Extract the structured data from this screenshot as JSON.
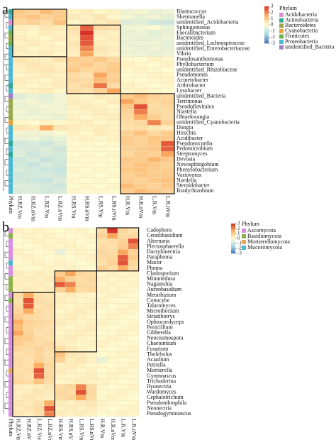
{
  "chart_data": [
    {
      "type": "heatmap",
      "label": "a",
      "strip_label": "Phylum",
      "legend_title": "Phylum",
      "x": [
        "H.RZ.Vm",
        "H.RZ.nVm",
        "L.RZ.Vm",
        "L.RZ.nVm",
        "H.RS.Vm",
        "H.RS.nVm",
        "L.RS.Vm",
        "L.RS.nVm",
        "H.R.Vm",
        "H.R.nVm",
        "L.R.Vm",
        "L.R.nVm"
      ],
      "y": [
        "Blastococcus",
        "Skermanella",
        "unidentified_Acidobacteria",
        "Sphingomonas",
        "Faecalibacterium",
        "Bacteroides",
        "unidentified_Lachnospiraceae",
        "unidentified_Enterobacteriaceae",
        "Vibrio",
        "Pseudoxanthomonas",
        "Phyllobacterium",
        "unidentified_Rhizobiaceae",
        "Pseudomonas",
        "Acinetobacter",
        "Arthrobacter",
        "Lysobacter",
        "unidentified_Bacteria",
        "Terrimonas",
        "Pseudoflavitalea",
        "Niastella",
        "Ohtaekwangia",
        "unidentified_Cyanobacteria",
        "Dongia",
        "Hirschia",
        "Acidibacter",
        "Pseudonocardia",
        "Pedomicrobium",
        "Streptomyces",
        "Devosia",
        "Novosphingobium",
        "Phenylobacterium",
        "Variovorax",
        "Nordella",
        "Steroidobacter",
        "Bradyrhizobium"
      ],
      "values": [
        [
          1.0,
          0.8,
          1.2,
          0.9,
          0.2,
          0.3,
          0.1,
          0.2,
          -0.3,
          -0.2,
          -0.4,
          -0.3
        ],
        [
          0.9,
          1.1,
          0.8,
          1.0,
          0.3,
          0.2,
          0.4,
          0.1,
          -0.2,
          -0.4,
          -0.3,
          -0.5
        ],
        [
          0.7,
          0.8,
          0.6,
          1.1,
          0.1,
          0.2,
          0.3,
          0.4,
          -0.6,
          -0.5,
          -0.8,
          -0.9
        ],
        [
          0.3,
          0.2,
          0.4,
          0.3,
          0.5,
          2.4,
          0.6,
          0.5,
          -0.3,
          -0.2,
          -0.1,
          -0.4
        ],
        [
          0.2,
          0.1,
          0.3,
          0.2,
          0.4,
          3.0,
          0.3,
          0.2,
          -0.4,
          -0.3,
          -0.5,
          -0.4
        ],
        [
          0.3,
          0.2,
          0.1,
          0.3,
          0.3,
          2.6,
          0.2,
          0.3,
          -0.3,
          -0.4,
          -0.4,
          -0.3
        ],
        [
          0.2,
          0.3,
          0.2,
          0.1,
          0.4,
          2.5,
          0.3,
          0.2,
          -0.4,
          -0.3,
          -0.3,
          -0.5
        ],
        [
          0.3,
          0.1,
          0.2,
          0.2,
          0.3,
          2.0,
          0.4,
          0.3,
          -0.2,
          -0.4,
          -0.3,
          -0.4
        ],
        [
          0.2,
          0.2,
          0.3,
          0.1,
          0.2,
          1.6,
          0.3,
          0.2,
          -0.3,
          -0.3,
          -0.4,
          -0.3
        ],
        [
          0.4,
          0.3,
          0.2,
          0.5,
          0.9,
          0.8,
          1.0,
          0.7,
          0.1,
          0.0,
          0.2,
          0.1
        ],
        [
          0.3,
          0.4,
          0.3,
          0.2,
          0.8,
          1.0,
          0.7,
          0.9,
          0.2,
          0.1,
          0.0,
          0.2
        ],
        [
          0.2,
          0.3,
          0.4,
          0.3,
          1.0,
          0.7,
          0.8,
          1.0,
          0.1,
          0.2,
          0.1,
          0.0
        ],
        [
          0.1,
          0.2,
          0.3,
          0.2,
          0.6,
          0.5,
          1.6,
          0.8,
          0.0,
          0.1,
          0.2,
          0.1
        ],
        [
          0.3,
          0.2,
          0.1,
          0.3,
          0.7,
          0.6,
          1.2,
          0.9,
          0.1,
          0.0,
          0.1,
          0.2
        ],
        [
          0.2,
          0.1,
          0.2,
          0.3,
          0.5,
          0.7,
          2.2,
          0.6,
          0.2,
          0.1,
          0.0,
          0.1
        ],
        [
          0.1,
          0.2,
          0.3,
          0.1,
          0.6,
          0.5,
          0.8,
          1.6,
          0.1,
          0.2,
          0.1,
          0.0
        ],
        [
          -0.6,
          -0.4,
          -0.5,
          -0.3,
          0.2,
          0.1,
          0.3,
          0.2,
          0.9,
          1.2,
          0.8,
          0.7
        ],
        [
          -0.3,
          -0.2,
          -0.4,
          -0.2,
          0.3,
          0.2,
          0.1,
          0.3,
          1.6,
          1.0,
          0.7,
          0.8
        ],
        [
          -0.4,
          -0.3,
          -0.2,
          -0.3,
          0.2,
          0.3,
          0.2,
          0.1,
          1.0,
          2.6,
          0.6,
          0.7
        ],
        [
          -0.2,
          -0.4,
          -0.3,
          -0.2,
          0.1,
          0.2,
          0.3,
          0.2,
          0.8,
          2.1,
          0.7,
          0.6
        ],
        [
          -0.3,
          -0.2,
          -0.3,
          -0.4,
          0.2,
          0.1,
          0.2,
          0.3,
          0.7,
          1.5,
          0.9,
          0.6
        ],
        [
          0.1,
          0.0,
          0.2,
          0.1,
          0.2,
          0.3,
          0.1,
          0.2,
          0.6,
          0.7,
          2.0,
          0.8
        ],
        [
          0.4,
          0.3,
          1.5,
          0.4,
          0.3,
          0.2,
          0.3,
          0.2,
          0.5,
          0.6,
          0.4,
          0.3
        ],
        [
          -0.2,
          -0.3,
          -0.2,
          -0.1,
          0.2,
          0.1,
          0.3,
          0.2,
          0.8,
          1.1,
          0.7,
          0.9
        ],
        [
          -0.4,
          -0.3,
          -0.5,
          -0.4,
          0.1,
          0.2,
          0.1,
          0.2,
          0.9,
          0.8,
          1.1,
          1.0
        ],
        [
          -0.8,
          -0.7,
          -0.9,
          -0.6,
          0.0,
          0.1,
          0.0,
          0.1,
          0.9,
          0.8,
          1.0,
          2.5
        ],
        [
          -0.7,
          -0.8,
          -0.6,
          -0.9,
          0.1,
          0.0,
          0.1,
          0.0,
          0.8,
          0.9,
          1.0,
          2.4
        ],
        [
          -0.6,
          -0.9,
          -0.7,
          -0.8,
          0.0,
          0.1,
          0.0,
          0.1,
          0.7,
          0.9,
          0.8,
          1.6
        ],
        [
          -0.9,
          -0.7,
          -1.0,
          -0.8,
          0.1,
          0.0,
          0.1,
          0.0,
          1.0,
          0.9,
          1.3,
          1.0
        ],
        [
          -0.8,
          -1.0,
          -0.7,
          -0.9,
          0.0,
          0.1,
          0.0,
          0.1,
          0.9,
          1.1,
          1.0,
          0.8
        ],
        [
          -0.7,
          -0.8,
          -0.9,
          -1.0,
          0.1,
          0.0,
          0.1,
          0.0,
          1.0,
          1.1,
          0.9,
          0.9
        ],
        [
          -0.9,
          -0.8,
          -0.7,
          -0.9,
          0.0,
          0.1,
          0.0,
          0.1,
          0.8,
          1.0,
          0.9,
          1.0
        ],
        [
          -0.8,
          -0.9,
          -1.0,
          -0.7,
          0.1,
          0.0,
          0.1,
          0.0,
          0.9,
          0.8,
          1.0,
          1.1
        ],
        [
          -0.6,
          -0.7,
          -0.8,
          -0.9,
          0.0,
          0.1,
          0.0,
          0.1,
          1.2,
          0.9,
          0.8,
          1.0
        ],
        [
          -0.7,
          -0.6,
          -0.8,
          -0.7,
          0.1,
          0.0,
          0.1,
          0.0,
          0.9,
          1.2,
          1.0,
          0.8
        ]
      ],
      "zlim": [
        -3,
        3
      ],
      "zticks": [
        3,
        2,
        1,
        0,
        -1,
        -2,
        -3
      ],
      "colormap": {
        "low": "#4575b4",
        "mid": "#fffbd0",
        "high": "#d73027"
      },
      "phyla": [
        {
          "name": "Acidobacteria",
          "color": "#e08bd6"
        },
        {
          "name": "Actinobacteria",
          "color": "#2fa89a"
        },
        {
          "name": "Bacteroidetes",
          "color": "#9aa84a"
        },
        {
          "name": "Cyanobacteria",
          "color": "#e9a23f"
        },
        {
          "name": "Firmicutes",
          "color": "#6cb24c"
        },
        {
          "name": "Proteobacteria",
          "color": "#4cb8d2"
        },
        {
          "name": "unidentified_Bacteria",
          "color": "#a07cc4"
        }
      ],
      "row_phylum": [
        1,
        5,
        0,
        5,
        4,
        2,
        4,
        5,
        5,
        5,
        5,
        5,
        5,
        5,
        1,
        5,
        6,
        2,
        2,
        2,
        2,
        3,
        5,
        5,
        5,
        1,
        5,
        1,
        5,
        5,
        5,
        5,
        5,
        5,
        5
      ]
    },
    {
      "type": "heatmap",
      "label": "b",
      "strip_label": "Phylum",
      "legend_title": "Phylum",
      "x": [
        "H.RZ.Vm",
        "H.RZ.nVm",
        "L.RZ.Vm",
        "L.RZ.nVm",
        "H.RS.Vm",
        "H.RS.nVm",
        "L.RS.Vm",
        "L.RS.nVm",
        "H.R.Vm",
        "H.R.nVm",
        "L.R.Vm",
        "L.R.nVm"
      ],
      "y": [
        "Cadophora",
        "Ceratobasidium",
        "Alternaria",
        "Plectosphaerella",
        "Dactylonectria",
        "Paraphoma",
        "Mucor",
        "Phoma",
        "Cladosporium",
        "Minimedusa",
        "Naganishia",
        "Aureobasidium",
        "Metarhizium",
        "Conocybe",
        "Talaromyces",
        "Microthecium",
        "Striatibotrys",
        "Ophiocordyceps",
        "Penicillium",
        "Gibberella",
        "Neocosmospora",
        "Chaetomium",
        "Fusarium",
        "Thelebolus",
        "Acaulium",
        "Petriella",
        "Mortierella",
        "Gymnoascus",
        "Trichoderma",
        "Ilyonectria",
        "Wardomyces",
        "Cephalotrichum",
        "Pseudombrophila",
        "Neonectria",
        "Pseudogymnoascus"
      ],
      "values": [
        [
          0.2,
          0.1,
          0.2,
          0.1,
          0.0,
          0.1,
          0.2,
          0.0,
          0.6,
          3.0,
          0.7,
          0.5
        ],
        [
          0.1,
          0.2,
          0.1,
          0.2,
          0.1,
          0.0,
          0.1,
          0.2,
          0.8,
          1.6,
          0.6,
          0.7
        ],
        [
          0.0,
          0.1,
          0.2,
          0.1,
          0.2,
          0.1,
          0.0,
          0.1,
          0.5,
          0.6,
          0.8,
          2.6
        ],
        [
          0.1,
          0.0,
          0.1,
          0.2,
          0.1,
          0.2,
          0.1,
          0.0,
          0.6,
          0.5,
          0.9,
          2.0
        ],
        [
          0.2,
          0.1,
          0.0,
          0.1,
          -0.4,
          0.1,
          0.2,
          0.1,
          0.7,
          0.6,
          1.6,
          0.8
        ],
        [
          0.1,
          0.2,
          0.1,
          0.0,
          0.1,
          0.0,
          0.1,
          0.2,
          0.6,
          0.7,
          2.5,
          0.9
        ],
        [
          0.0,
          0.1,
          0.2,
          0.1,
          0.2,
          0.1,
          0.0,
          0.1,
          0.5,
          0.8,
          2.6,
          0.7
        ],
        [
          0.1,
          0.0,
          0.1,
          0.2,
          0.1,
          0.2,
          0.1,
          0.0,
          0.8,
          0.6,
          1.5,
          0.6
        ],
        [
          0.3,
          0.2,
          0.3,
          0.2,
          0.9,
          1.6,
          0.7,
          0.6,
          0.1,
          0.2,
          0.1,
          0.2
        ],
        [
          0.2,
          0.3,
          0.2,
          0.3,
          1.5,
          0.8,
          0.6,
          0.7,
          0.2,
          0.1,
          0.2,
          0.1
        ],
        [
          0.3,
          0.2,
          0.3,
          0.2,
          2.5,
          2.0,
          0.7,
          0.6,
          0.1,
          0.2,
          0.1,
          0.2
        ],
        [
          0.2,
          0.3,
          0.2,
          0.3,
          0.8,
          1.5,
          0.6,
          0.7,
          0.2,
          0.1,
          0.2,
          0.1
        ],
        [
          0.6,
          1.5,
          0.5,
          0.4,
          0.2,
          0.3,
          0.2,
          0.1,
          0.1,
          0.2,
          0.1,
          0.0
        ],
        [
          0.5,
          2.6,
          0.6,
          0.5,
          0.3,
          0.2,
          0.1,
          0.2,
          0.2,
          0.1,
          0.0,
          0.1
        ],
        [
          0.6,
          2.5,
          0.5,
          0.6,
          0.2,
          0.1,
          0.2,
          0.3,
          0.1,
          0.0,
          0.1,
          0.2
        ],
        [
          0.7,
          1.5,
          0.6,
          0.5,
          0.1,
          0.2,
          0.3,
          0.2,
          0.0,
          0.1,
          0.2,
          0.1
        ],
        [
          0.9,
          0.7,
          0.6,
          0.5,
          0.2,
          0.3,
          0.2,
          0.1,
          0.1,
          0.2,
          0.1,
          0.0
        ],
        [
          1.5,
          0.8,
          0.7,
          0.6,
          0.3,
          0.2,
          0.1,
          0.2,
          0.2,
          0.1,
          0.0,
          0.1
        ],
        [
          1.2,
          0.7,
          0.6,
          0.5,
          0.2,
          0.1,
          0.2,
          0.3,
          0.1,
          0.0,
          0.1,
          0.2
        ],
        [
          1.6,
          0.8,
          0.5,
          0.6,
          0.1,
          0.2,
          0.3,
          0.2,
          0.0,
          0.1,
          0.2,
          0.1
        ],
        [
          1.0,
          0.9,
          0.6,
          0.5,
          0.2,
          0.3,
          0.2,
          0.1,
          0.1,
          0.2,
          0.1,
          0.0
        ],
        [
          0.9,
          0.7,
          0.6,
          0.7,
          0.3,
          0.2,
          0.1,
          0.2,
          0.2,
          0.1,
          0.0,
          0.1
        ],
        [
          0.7,
          0.6,
          0.8,
          0.6,
          0.6,
          0.3,
          0.2,
          0.1,
          0.1,
          0.0,
          0.1,
          0.2
        ],
        [
          0.5,
          0.6,
          0.7,
          0.5,
          1.1,
          0.4,
          0.3,
          0.2,
          0.0,
          0.1,
          0.2,
          0.1
        ],
        [
          0.6,
          0.5,
          0.8,
          0.6,
          0.8,
          0.3,
          0.4,
          0.2,
          -0.4,
          0.1,
          0.0,
          0.1
        ],
        [
          0.6,
          0.5,
          1.5,
          0.7,
          0.2,
          0.3,
          0.2,
          0.1,
          0.1,
          0.0,
          0.1,
          0.2
        ],
        [
          0.5,
          0.6,
          2.6,
          0.6,
          0.3,
          0.2,
          0.1,
          0.2,
          0.0,
          0.1,
          0.2,
          0.1
        ],
        [
          0.6,
          0.5,
          2.4,
          0.7,
          0.2,
          0.1,
          0.2,
          0.3,
          0.1,
          0.2,
          0.1,
          0.0
        ],
        [
          0.7,
          0.6,
          1.1,
          0.6,
          0.1,
          0.2,
          0.3,
          0.2,
          0.2,
          0.1,
          0.0,
          0.1
        ],
        [
          0.3,
          0.2,
          0.3,
          0.4,
          0.6,
          0.7,
          2.0,
          0.6,
          0.1,
          0.0,
          0.1,
          0.2
        ],
        [
          0.2,
          0.3,
          0.4,
          0.3,
          0.7,
          0.6,
          2.6,
          0.7,
          0.0,
          0.1,
          0.2,
          0.1
        ],
        [
          0.3,
          0.4,
          0.3,
          0.2,
          0.6,
          0.7,
          1.5,
          0.6,
          0.1,
          0.2,
          0.1,
          0.0
        ],
        [
          0.4,
          0.3,
          0.5,
          1.5,
          0.3,
          0.2,
          0.3,
          0.4,
          0.2,
          0.1,
          0.0,
          0.1
        ],
        [
          0.3,
          0.4,
          0.6,
          2.6,
          0.2,
          0.3,
          0.2,
          0.3,
          0.1,
          0.0,
          0.1,
          0.2
        ],
        [
          0.4,
          0.3,
          0.5,
          2.0,
          0.3,
          0.2,
          0.3,
          0.2,
          0.0,
          0.1,
          0.2,
          0.1
        ]
      ],
      "zlim": [
        -3,
        3
      ],
      "zticks": [
        3,
        2,
        1,
        0,
        -1,
        -2,
        -3
      ],
      "colormap": {
        "low": "#4575b4",
        "mid": "#fffbd0",
        "high": "#d73027"
      },
      "phyla": [
        {
          "name": "Ascomycota",
          "color": "#d98ee0"
        },
        {
          "name": "Basidiomycota",
          "color": "#8db04a"
        },
        {
          "name": "Mortierellomycota",
          "color": "#e8a35a"
        },
        {
          "name": "Mucoromycota",
          "color": "#4cb8c8"
        }
      ],
      "row_phylum": [
        0,
        1,
        0,
        0,
        0,
        0,
        3,
        0,
        0,
        1,
        1,
        1,
        0,
        1,
        0,
        0,
        0,
        0,
        0,
        0,
        0,
        0,
        0,
        0,
        0,
        0,
        2,
        0,
        0,
        0,
        0,
        0,
        0,
        0,
        0
      ]
    }
  ]
}
